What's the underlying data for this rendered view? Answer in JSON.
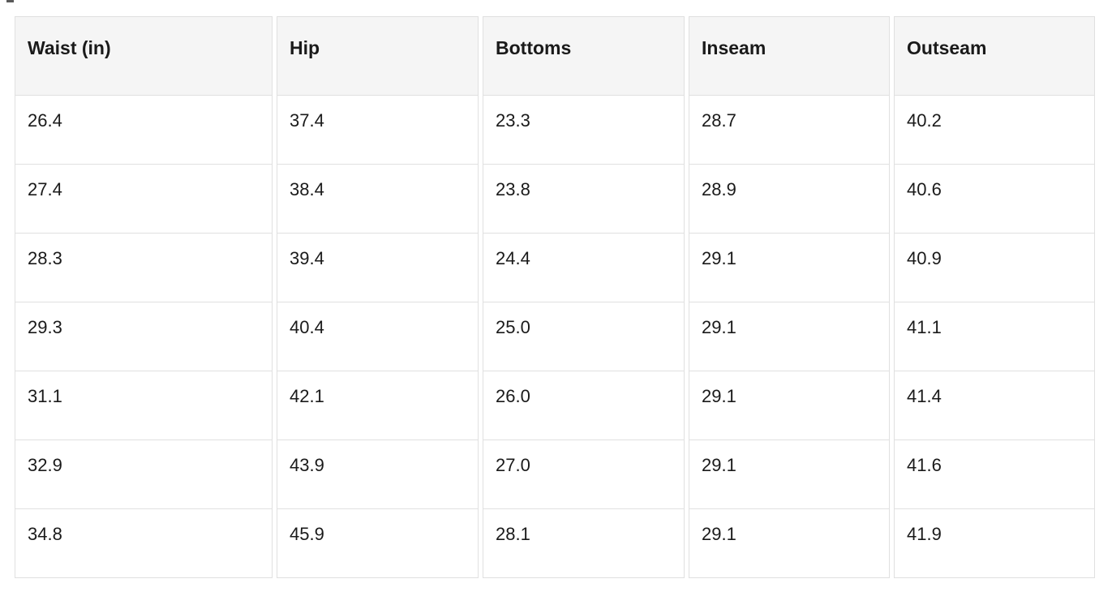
{
  "colors": {
    "header_bg": "#f5f5f5",
    "cell_bg": "#ffffff",
    "border": "#e0e0e0",
    "text": "#1a1a1a",
    "page_bg": "#ffffff"
  },
  "chart_data": {
    "type": "table",
    "columns": [
      "Waist (in)",
      "Hip",
      "Bottoms",
      "Inseam",
      "Outseam"
    ],
    "rows": [
      [
        "26.4",
        "37.4",
        "23.3",
        "28.7",
        "40.2"
      ],
      [
        "27.4",
        "38.4",
        "23.8",
        "28.9",
        "40.6"
      ],
      [
        "28.3",
        "39.4",
        "24.4",
        "29.1",
        "40.9"
      ],
      [
        "29.3",
        "40.4",
        "25.0",
        "29.1",
        "41.1"
      ],
      [
        "31.1",
        "42.1",
        "26.0",
        "29.1",
        "41.4"
      ],
      [
        "32.9",
        "43.9",
        "27.0",
        "29.1",
        "41.6"
      ],
      [
        "34.8",
        "45.9",
        "28.1",
        "29.1",
        "41.9"
      ]
    ]
  }
}
